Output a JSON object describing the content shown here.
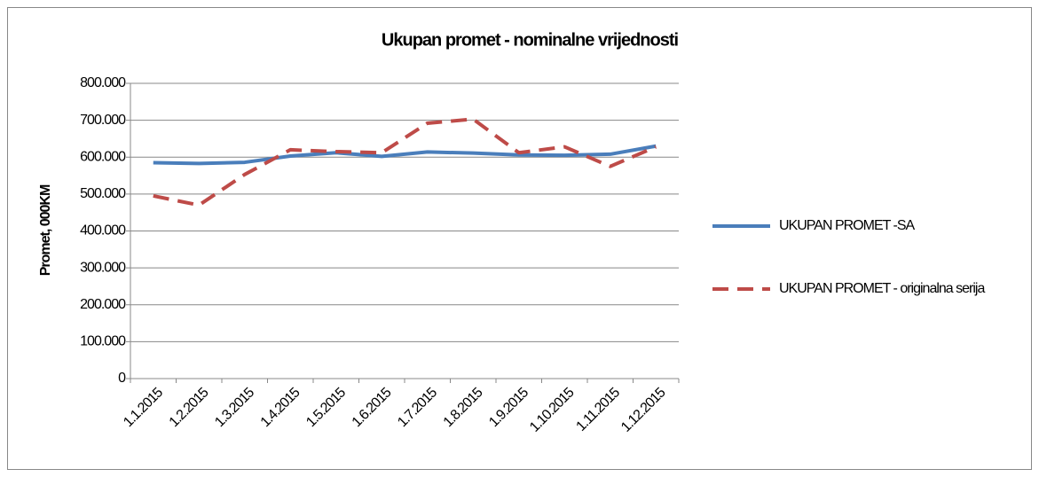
{
  "chart_data": {
    "type": "line",
    "title": "Ukupan promet - nominalne vrijednosti",
    "y_label": "Promet, 000KM",
    "categories": [
      "1.1.2015",
      "1.2.2015",
      "1.3.2015",
      "1.4.2015",
      "1.5.2015",
      "1.6.2015",
      "1.7.2015",
      "1.8.2015",
      "1.9.2015",
      "1.10.2015",
      "1.11.2015",
      "1.12.2015"
    ],
    "series": [
      {
        "name": "UKUPAN PROMET -SA",
        "color": "#4a7ebb",
        "dashed": false,
        "values": [
          585000,
          583000,
          586000,
          603000,
          612000,
          602000,
          614000,
          611000,
          606000,
          605000,
          608000,
          630000
        ]
      },
      {
        "name": "UKUPAN PROMET - originalna serija",
        "color": "#be4b48",
        "dashed": true,
        "values": [
          495000,
          470000,
          553000,
          620000,
          615000,
          612000,
          692000,
          703000,
          612000,
          628000,
          575000,
          628000
        ]
      }
    ],
    "ylim": [
      0,
      800000
    ],
    "yticks": [
      0,
      {
        "value": 100000,
        "label": "100.000"
      },
      {
        "value": 200000,
        "label": "200.000"
      },
      {
        "value": 300000,
        "label": "300.000"
      },
      {
        "value": 400000,
        "label": "400.000"
      },
      {
        "value": 500000,
        "label": "500.000"
      },
      {
        "value": 600000,
        "label": "600.000"
      },
      {
        "value": 700000,
        "label": "700.000"
      },
      {
        "value": 800000,
        "label": "800.000"
      }
    ],
    "grid": true,
    "legend": "right"
  }
}
